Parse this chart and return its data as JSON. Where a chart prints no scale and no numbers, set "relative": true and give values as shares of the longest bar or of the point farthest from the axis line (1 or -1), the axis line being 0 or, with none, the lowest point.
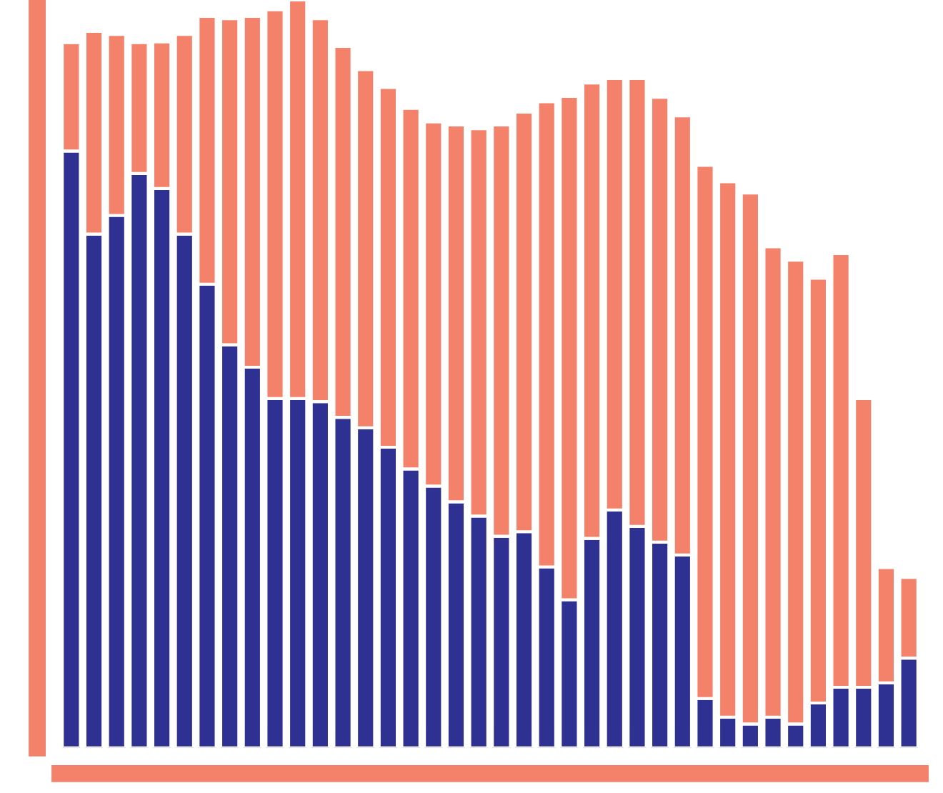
{
  "chart_data": {
    "type": "bar",
    "stacked": true,
    "relative": true,
    "categories": [
      null,
      null,
      null,
      null,
      null,
      null,
      null,
      null,
      null,
      null,
      null,
      null,
      null,
      null,
      null,
      null,
      null,
      null,
      null,
      null,
      null,
      null,
      null,
      null,
      null,
      null,
      null,
      null,
      null,
      null,
      null,
      null,
      null,
      null,
      null,
      null,
      null,
      null
    ],
    "series": [
      {
        "color": "#2e3192",
        "values": [
          0.798,
          0.687,
          0.712,
          0.768,
          0.748,
          0.687,
          0.62,
          0.539,
          0.509,
          0.467,
          0.467,
          0.463,
          0.442,
          0.428,
          0.402,
          0.373,
          0.35,
          0.329,
          0.31,
          0.283,
          0.289,
          0.242,
          0.198,
          0.28,
          0.318,
          0.296,
          0.275,
          0.258,
          0.066,
          0.041,
          0.032,
          0.041,
          0.032,
          0.06,
          0.081,
          0.081,
          0.087,
          0.12
        ]
      },
      {
        "color": "#f4826b",
        "values": [
          0.145,
          0.271,
          0.242,
          0.175,
          0.196,
          0.267,
          0.358,
          0.436,
          0.469,
          0.52,
          0.533,
          0.512,
          0.496,
          0.479,
          0.481,
          0.482,
          0.487,
          0.504,
          0.518,
          0.55,
          0.561,
          0.622,
          0.673,
          0.609,
          0.577,
          0.599,
          0.595,
          0.587,
          0.713,
          0.716,
          0.71,
          0.629,
          0.62,
          0.568,
          0.58,
          0.386,
          0.154,
          0.108
        ]
      }
    ]
  }
}
